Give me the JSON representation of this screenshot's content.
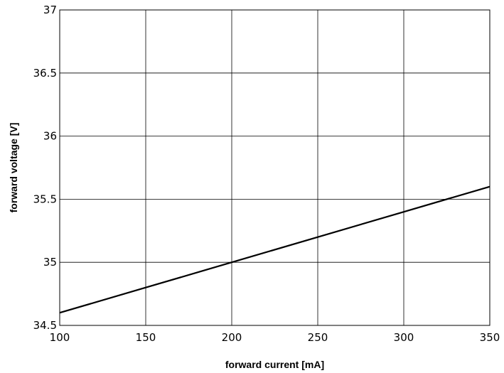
{
  "chart_data": {
    "type": "line",
    "xlabel": "forward current [mA]",
    "ylabel": "forward voltage [V]",
    "xlim": [
      100,
      350
    ],
    "ylim": [
      34.5,
      37
    ],
    "xticks": [
      100,
      150,
      200,
      250,
      300,
      350
    ],
    "yticks": [
      34.5,
      35,
      35.5,
      36,
      36.5,
      37
    ],
    "grid": true,
    "series": [
      {
        "x": [
          100,
          150,
          200,
          250,
          300,
          350
        ],
        "y": [
          34.6,
          34.8,
          35.0,
          35.2,
          35.4,
          35.6
        ]
      }
    ]
  }
}
